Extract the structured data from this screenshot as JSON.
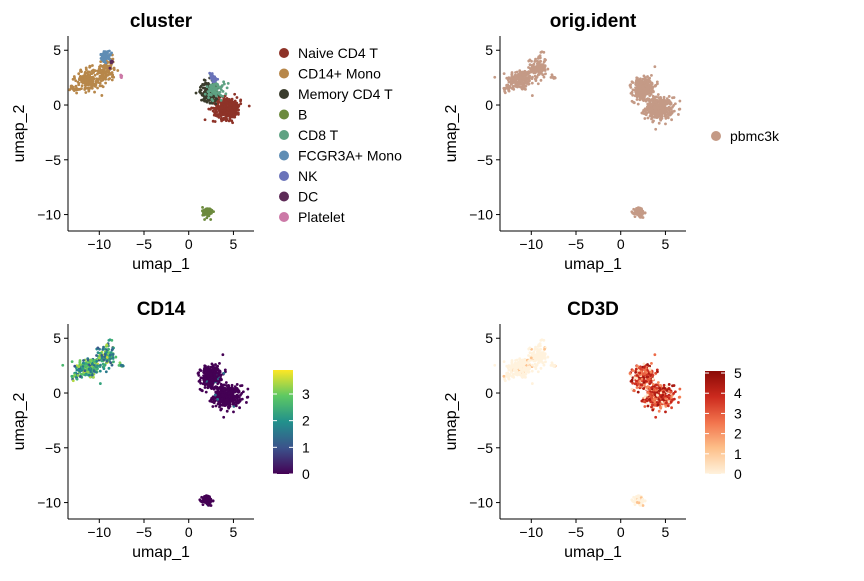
{
  "chart_data": [
    {
      "type": "scatter",
      "title": "cluster",
      "xlabel": "umap_1",
      "ylabel": "umap_2",
      "xlim": [
        -13.5,
        7.3
      ],
      "ylim": [
        -11.5,
        6.3
      ],
      "xticks": [
        -10,
        -5,
        0,
        5
      ],
      "yticks": [
        5,
        0,
        -5,
        -10
      ],
      "legend_position": "right",
      "series": [
        {
          "name": "Naive CD4 T",
          "color": "#8E3328",
          "blobs": [
            [
              4.3,
              -0.3,
              1.4,
              0.9,
              320
            ]
          ]
        },
        {
          "name": "CD14+ Mono",
          "color": "#B7874A",
          "blobs": [
            [
              -11.2,
              2.3,
              1.3,
              0.9,
              180
            ],
            [
              -9.2,
              3.2,
              0.8,
              1.0,
              120
            ],
            [
              -12.7,
              1.5,
              0.5,
              0.3,
              20
            ]
          ]
        },
        {
          "name": "Memory CD4 T",
          "color": "#3A3C2C",
          "blobs": [
            [
              2.3,
              1.2,
              0.9,
              0.8,
              180
            ]
          ]
        },
        {
          "name": "B",
          "color": "#6C8A3D",
          "blobs": [
            [
              2.1,
              -9.8,
              0.5,
              0.45,
              80
            ]
          ]
        },
        {
          "name": "CD8 T",
          "color": "#5FA283",
          "blobs": [
            [
              3.0,
              1.4,
              0.9,
              0.9,
              70
            ]
          ]
        },
        {
          "name": "FCGR3A+ Mono",
          "color": "#5F8DB4",
          "blobs": [
            [
              -9.3,
              4.5,
              0.5,
              0.4,
              60
            ]
          ]
        },
        {
          "name": "NK",
          "color": "#6A73B9",
          "blobs": [
            [
              2.7,
              2.5,
              0.5,
              0.4,
              30
            ]
          ]
        },
        {
          "name": "DC",
          "color": "#5D2B57",
          "blobs": [
            [
              -8.7,
              3.8,
              0.3,
              0.3,
              6
            ]
          ]
        },
        {
          "name": "Platelet",
          "color": "#CC79A7",
          "blobs": [
            [
              -7.5,
              2.6,
              0.3,
              0.3,
              4
            ]
          ]
        }
      ]
    },
    {
      "type": "scatter",
      "title": "orig.ident",
      "xlabel": "umap_1",
      "ylabel": "umap_2",
      "xlim": [
        -13.5,
        7.3
      ],
      "ylim": [
        -11.5,
        6.3
      ],
      "xticks": [
        -10,
        -5,
        0,
        5
      ],
      "yticks": [
        5,
        0,
        -5,
        -10
      ],
      "legend_position": "right",
      "series": [
        {
          "name": "pbmc3k",
          "color": "#C49A86"
        }
      ]
    },
    {
      "type": "scatter",
      "title": "CD14",
      "xlabel": "umap_1",
      "ylabel": "umap_2",
      "xlim": [
        -13.5,
        7.3
      ],
      "ylim": [
        -11.5,
        6.3
      ],
      "xticks": [
        -10,
        -5,
        0,
        5
      ],
      "yticks": [
        5,
        0,
        -5,
        -10
      ],
      "colorbar": {
        "min": 0,
        "max": 3.9,
        "ticks": [
          0,
          1,
          2,
          3
        ],
        "palette": [
          "#440154",
          "#3B528B",
          "#21908C",
          "#5DC863",
          "#FDE725"
        ]
      },
      "expression_high_in": "monocyte cluster (x around -12 to -8)"
    },
    {
      "type": "scatter",
      "title": "CD3D",
      "xlabel": "umap_1",
      "ylabel": "umap_2",
      "xlim": [
        -13.5,
        7.3
      ],
      "ylim": [
        -11.5,
        6.3
      ],
      "xticks": [
        -10,
        -5,
        0,
        5
      ],
      "yticks": [
        5,
        0,
        -5,
        -10
      ],
      "colorbar": {
        "min": 0,
        "max": 5.1,
        "ticks": [
          0,
          1,
          2,
          3,
          4,
          5
        ],
        "palette": [
          "#FFF2DD",
          "#FDC08A",
          "#F2744D",
          "#CC2A1E",
          "#8B0A06"
        ]
      },
      "expression_high_in": "T cell cluster (x around 1 to 6)"
    }
  ]
}
